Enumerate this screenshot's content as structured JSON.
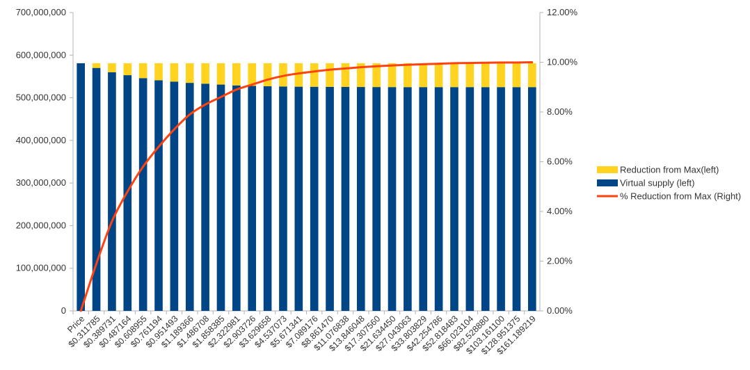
{
  "chart_data": {
    "type": "bar",
    "stacked": true,
    "categories": [
      "Price",
      "$0.311785",
      "$0.389731",
      "$0.487164",
      "$0.608955",
      "$0.761194",
      "$0.951493",
      "$1.189366",
      "$1.486708",
      "$1.858385",
      "$2.322981",
      "$2.903726",
      "$3.629658",
      "$4.537073",
      "$5.671341",
      "$7.089176",
      "$8.861470",
      "$11.076838",
      "$13.846048",
      "$17.307560",
      "$21.634450",
      "$27.043063",
      "$33.803829",
      "$42.254786",
      "$52.818483",
      "$66.023104",
      "$82.528880",
      "$103.161100",
      "$128.951375",
      "$161.189219"
    ],
    "series": [
      {
        "name": "Virtual supply (left)",
        "type": "bar",
        "axis": "left",
        "color": "#004586",
        "values": [
          581000000,
          570000000,
          560000000,
          553000000,
          546000000,
          541000000,
          538000000,
          535000000,
          533000000,
          531000000,
          529000000,
          528000000,
          527000000,
          526500000,
          526000000,
          525800000,
          525600000,
          525400000,
          525300000,
          525200000,
          525100000,
          525000000,
          525000000,
          525000000,
          525000000,
          525000000,
          525000000,
          525000000,
          525000000,
          525000000
        ]
      },
      {
        "name": "Reduction from Max(left)",
        "type": "bar",
        "axis": "left",
        "color": "#ffd320",
        "values": [
          0,
          11000000,
          21000000,
          28000000,
          35000000,
          40000000,
          43000000,
          46000000,
          48000000,
          50000000,
          52000000,
          53000000,
          54000000,
          54500000,
          55000000,
          55200000,
          55400000,
          55600000,
          55700000,
          55800000,
          55900000,
          56000000,
          56000000,
          56000000,
          56000000,
          56000000,
          56000000,
          56000000,
          56000000,
          56000000
        ]
      },
      {
        "name": "% Reduction from Max (Right)",
        "type": "line",
        "axis": "right",
        "color": "#ff420e",
        "values": [
          0.0,
          1.9,
          3.6,
          4.8,
          5.8,
          6.6,
          7.3,
          7.9,
          8.3,
          8.6,
          8.9,
          9.1,
          9.3,
          9.45,
          9.55,
          9.63,
          9.7,
          9.75,
          9.8,
          9.84,
          9.87,
          9.9,
          9.92,
          9.94,
          9.96,
          9.97,
          9.98,
          9.99,
          9.99,
          10.0
        ]
      }
    ],
    "y_left": {
      "min": 0,
      "max": 700000000,
      "ticks": [
        0,
        100000000,
        200000000,
        300000000,
        400000000,
        500000000,
        600000000,
        700000000
      ],
      "tick_labels": [
        "0",
        "100,000,000",
        "200,000,000",
        "300,000,000",
        "400,000,000",
        "500,000,000",
        "600,000,000",
        "700,000,000"
      ]
    },
    "y_right": {
      "min": 0,
      "max": 12,
      "ticks": [
        0,
        2,
        4,
        6,
        8,
        10,
        12
      ],
      "tick_labels": [
        "0.00%",
        "2.00%",
        "4.00%",
        "6.00%",
        "8.00%",
        "10.00%",
        "12.00%"
      ]
    },
    "grid": false,
    "legend_position": "right",
    "legend": [
      {
        "label": "Reduction from Max(left)",
        "color": "#ffd320",
        "kind": "bar"
      },
      {
        "label": "Virtual supply (left)",
        "color": "#004586",
        "kind": "bar"
      },
      {
        "label": "% Reduction from Max (Right)",
        "color": "#ff420e",
        "kind": "line"
      }
    ],
    "title": "",
    "xlabel": "",
    "ylabel": ""
  }
}
